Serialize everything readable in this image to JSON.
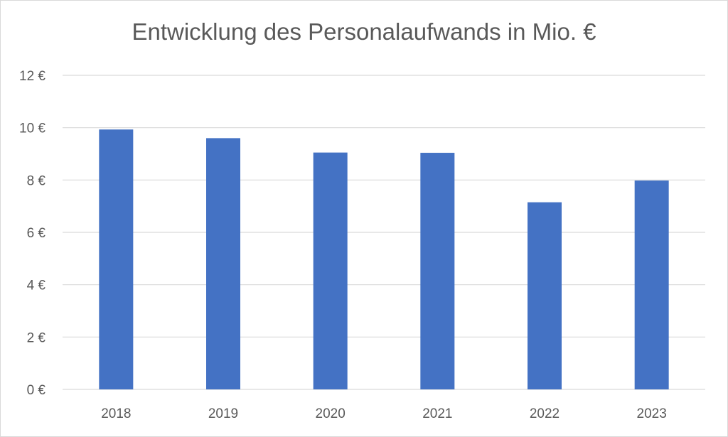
{
  "chart_data": {
    "type": "bar",
    "title": "Entwicklung des Personalaufwands in Mio. €",
    "xlabel": "",
    "ylabel": "",
    "categories": [
      "2018",
      "2019",
      "2020",
      "2021",
      "2022",
      "2023"
    ],
    "values": [
      9.93,
      9.6,
      9.05,
      9.04,
      7.15,
      7.98
    ],
    "ylim": [
      0,
      12
    ],
    "yticks": [
      0,
      2,
      4,
      6,
      8,
      10,
      12
    ],
    "ytick_labels": [
      "0 €",
      "2 €",
      "4 €",
      "6 €",
      "8 €",
      "10 €",
      "12 €"
    ],
    "grid": true,
    "legend": "none",
    "colors": {
      "bar": "#4472c4",
      "grid": "#d9d9d9",
      "text": "#595959"
    }
  }
}
